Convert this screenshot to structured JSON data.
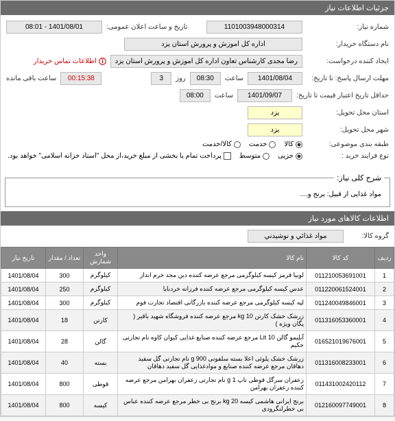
{
  "header": {
    "title": "جزئیات اطلاعات نیاز"
  },
  "form": {
    "need_number_label": "شماره نیاز:",
    "need_number": "1101003948000314",
    "announce_label": "تاریخ و ساعت اعلان عمومی:",
    "announce_value": "1401/08/01 - 08:01",
    "buyer_label": "نام دستگاه خریدار:",
    "buyer_value": "اداره کل اموزش و پرورش استان یزد",
    "requester_label": "ایجاد کننده درخواست:",
    "requester_value": "رضا مجدی کارشناس تعاون اداره کل اموزش و پرورش استان یزد",
    "contact_text": "اطلاعات تماس خریدار",
    "deadline_send_label": "مهلت ارسال پاسخ: تا تاریخ:",
    "deadline_send_date": "1401/08/04",
    "deadline_send_time_label": "ساعت",
    "deadline_send_time": "08:30",
    "day_label": "روز",
    "day_value": "3",
    "remaining_label": "ساعت باقی مانده",
    "remaining_value": "00:15:38",
    "validity_label": "حداقل تاریخ اعتبار قیمت تا تاریخ:",
    "validity_date": "1401/09/07",
    "validity_time_label": "ساعت",
    "validity_time": "08:00",
    "province_label": "استان محل تحویل:",
    "province_value": "یزد",
    "city_label": "شهر محل تحویل:",
    "city_value": "یزد",
    "category_label": "طبقه بندی موضوعی:",
    "cat_goods": "کالا",
    "cat_service": "خدمت",
    "cat_both": "کالا/خدمت",
    "buytype_label": "نوع فرایند خرید :",
    "bt_minor": "جزیی",
    "bt_medium": "متوسط",
    "bt_note": "پرداخت تمام یا بخشی از مبلغ خرید،از محل \"اسناد خزانه اسلامی\" خواهد بود.",
    "desc_legend": "شرح کلی نیاز:",
    "desc_value": "مواد غذایی از قبیل: برنج و....",
    "section_title": "اطلاعات کالاهای مورد نیاز",
    "group_label": "گروه کالا:",
    "group_value": "مواد غذائي و نوشيدني"
  },
  "table": {
    "headers": {
      "idx": "ردیف",
      "code": "کد کالا",
      "name": "نام کالا",
      "unit": "واحد شمارش",
      "qty": "تعداد / مقدار",
      "date": "تاریخ نیاز"
    },
    "rows": [
      {
        "idx": "1",
        "code": "011210053691001",
        "name": "لوبیا قرمز کیسه کیلوگرمی مرجع عرضه کننده دین مجد خرم انداز",
        "unit": "کیلوگرم",
        "qty": "300",
        "date": "1401/08/04"
      },
      {
        "idx": "2",
        "code": "011220061524001",
        "name": "عدس کیسه کیلوگرمی مرجع عرضه کننده فرزانه خردبابا",
        "unit": "کیلوگرم",
        "qty": "250",
        "date": "1401/08/04"
      },
      {
        "idx": "3",
        "code": "011240049846001",
        "name": "لپه کیسه کیلوگرمی مرجع عرضه کننده بازرگانی اقتصاد تجارت فوم",
        "unit": "کیلوگرم",
        "qty": "300",
        "date": "1401/08/04"
      },
      {
        "idx": "4",
        "code": "011316053360001",
        "name": "زرشک خشک کارتن 10 kg مرجع عرضه کننده فروشگاه شهید باقیر ( پگان ویژه )",
        "unit": "کارتن",
        "qty": "18",
        "date": "1401/08/04"
      },
      {
        "idx": "5",
        "code": "016521019676001",
        "name": "آبلیمو گالن Lit 10 مرجع عرضه کننده صنایع غذایی کیوان کاوه نام تجارتی حکیم",
        "unit": "گالن",
        "qty": "28",
        "date": "1401/08/04"
      },
      {
        "idx": "6",
        "code": "011316008233001",
        "name": "زرشک خشک پلوئی اعلا بسته سلفونی g 900 نام تجارتی گل سفید دهاقان مرجع عرضه کننده صنایع و موادغذایی گل سفید دهاقان",
        "unit": "بسته",
        "qty": "40",
        "date": "1401/08/04"
      },
      {
        "idx": "7",
        "code": "011431002420112",
        "name": "زعفران سرگل قوطی تاپ 1 g نام تجارتی زعفران بهرامن مرجع عرضه کننده زعفران بهرامن",
        "unit": "قوطی",
        "qty": "800",
        "date": "1401/08/04"
      },
      {
        "idx": "8",
        "code": "012160097749001",
        "name": "برنج ایرانی هاشمی کیسه kg 20 برنج بی خطر مرجع عرضه کننده عباس بی خطرلنگرودی",
        "unit": "کیسه",
        "qty": "800",
        "date": "1401/08/04"
      }
    ]
  },
  "colors": {
    "header_bg": "#6b6b6b",
    "header_fg": "#ffffff",
    "input_bg": "#e8e8e8",
    "highlight_bg": "#ffffcc",
    "link_red": "#cc0000",
    "th_bg": "#8a8a8a"
  }
}
